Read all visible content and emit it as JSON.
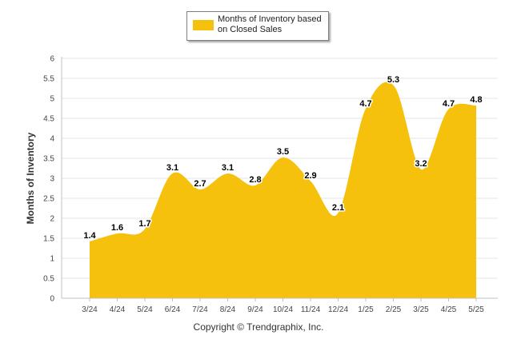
{
  "chart_data": {
    "type": "area",
    "categories": [
      "3/24",
      "4/24",
      "5/24",
      "6/24",
      "7/24",
      "8/24",
      "9/24",
      "10/24",
      "11/24",
      "12/24",
      "1/25",
      "2/25",
      "3/25",
      "4/25",
      "5/25"
    ],
    "series": [
      {
        "name": "Months of Inventory based on Closed Sales",
        "values": [
          1.4,
          1.6,
          1.7,
          3.1,
          2.7,
          3.1,
          2.8,
          3.5,
          2.9,
          2.1,
          4.7,
          5.3,
          3.2,
          4.7,
          4.8
        ]
      }
    ],
    "data_labels": [
      "1.4",
      "1.6",
      "1.7",
      "3.1",
      "2.7",
      "3.1",
      "2.8",
      "3.5",
      "2.9",
      "2.1",
      "4.7",
      "5.3",
      "3.2",
      "4.7",
      "4.8"
    ],
    "ylabel": "Months of Inventory",
    "xlabel": "",
    "ylim": [
      0,
      6
    ],
    "yticks": [
      "0",
      "0.5",
      "1",
      "1.5",
      "2",
      "2.5",
      "3",
      "3.5",
      "4",
      "4.5",
      "5",
      "5.5",
      "6"
    ],
    "grid": true,
    "legend_position": "top-center",
    "colors": {
      "fill": "#F6C10D",
      "grid": "#e6e6e6",
      "axis": "#c0c0c0"
    }
  },
  "legend": {
    "label": "Months of Inventory based on Closed Sales"
  },
  "footer": {
    "copyright": "Copyright © Trendgraphix, Inc."
  }
}
